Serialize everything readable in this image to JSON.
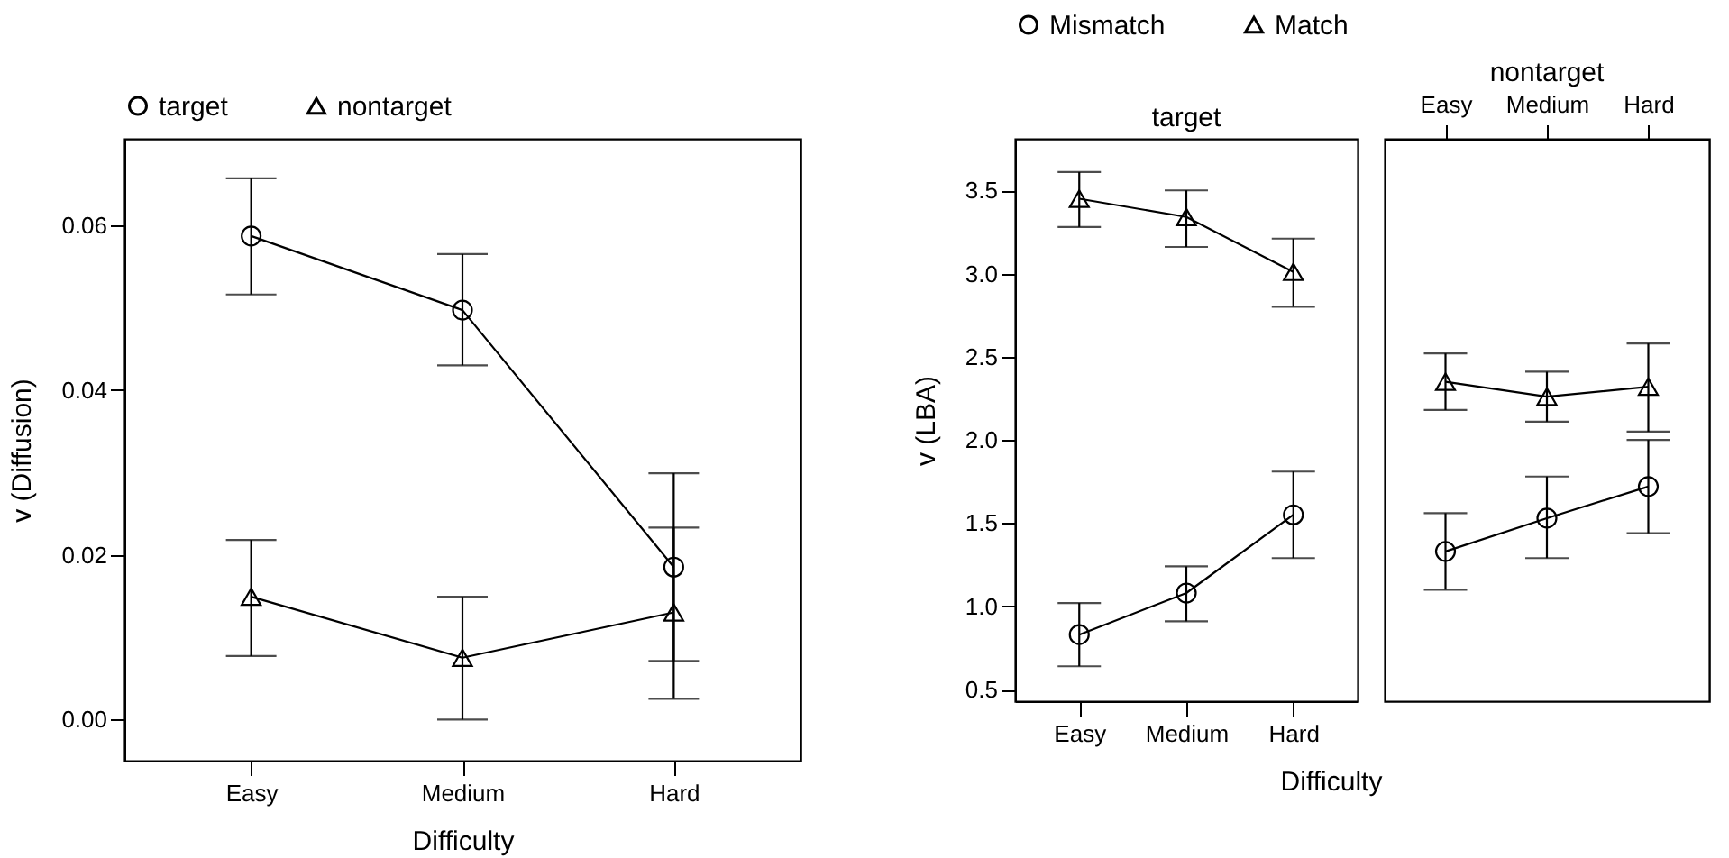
{
  "chart_data": [
    {
      "type": "line",
      "categories": [
        "Easy",
        "Medium",
        "Hard"
      ],
      "xlabel": "Difficulty",
      "ylabel": "v (Diffusion)",
      "ylim": [
        -0.005,
        0.0705
      ],
      "yticks": [
        {
          "value": 0,
          "label": "0.00"
        },
        {
          "value": 0.02,
          "label": "0.02"
        },
        {
          "value": 0.04,
          "label": "0.04"
        },
        {
          "value": 0.06,
          "label": "0.06"
        }
      ],
      "legend": "top",
      "grid": false,
      "series": [
        {
          "name": "target",
          "color": "#000000",
          "marker": "circle",
          "values": [
            0.0587,
            0.0497,
            0.0185
          ],
          "errors": [
            [
              0.0516,
              0.0657
            ],
            [
              0.043,
              0.0565
            ],
            [
              0.0071,
              0.0299
            ]
          ]
        },
        {
          "name": "nontarget",
          "color": "#000000",
          "marker": "triangle",
          "values": [
            0.0149,
            0.0075,
            0.013
          ],
          "errors": [
            [
              0.0077,
              0.0218
            ],
            [
              0.0,
              0.0149
            ],
            [
              0.0025,
              0.0233
            ]
          ]
        }
      ]
    },
    {
      "type": "line",
      "title": "target",
      "categories": [
        "Easy",
        "Medium",
        "Hard"
      ],
      "xlabel": "Difficulty",
      "ylabel": "v (LBA)",
      "ylim": [
        0.43,
        3.81
      ],
      "yticks": [
        0.5,
        {
          "value": 1,
          "label": "1.0"
        },
        1.5,
        {
          "value": 2,
          "label": "2.0"
        },
        2.5,
        {
          "value": 3,
          "label": "3.0"
        },
        3.5
      ],
      "legend": "top",
      "grid": false,
      "series": [
        {
          "name": "Mismatch",
          "color": "#000000",
          "marker": "circle",
          "values": [
            0.83,
            1.08,
            1.55
          ],
          "errors": [
            [
              0.64,
              1.02
            ],
            [
              0.91,
              1.24
            ],
            [
              1.29,
              1.81
            ]
          ]
        },
        {
          "name": "Match",
          "color": "#000000",
          "marker": "triangle",
          "values": [
            3.45,
            3.34,
            3.01
          ],
          "errors": [
            [
              3.28,
              3.61
            ],
            [
              3.16,
              3.5
            ],
            [
              2.8,
              3.21
            ]
          ]
        }
      ]
    },
    {
      "type": "line",
      "title": "nontarget",
      "categories": [
        "Easy",
        "Medium",
        "Hard"
      ],
      "ylim": [
        0.43,
        3.81
      ],
      "tick_labels": "x",
      "legend": "top",
      "grid": false,
      "series": [
        {
          "name": "Mismatch",
          "color": "#000000",
          "marker": "circle",
          "values": [
            1.33,
            1.53,
            1.72
          ],
          "errors": [
            [
              1.1,
              1.56
            ],
            [
              1.29,
              1.78
            ],
            [
              1.44,
              2.0
            ]
          ]
        },
        {
          "name": "Match",
          "color": "#000000",
          "marker": "triangle",
          "values": [
            2.35,
            2.26,
            2.32
          ],
          "errors": [
            [
              2.18,
              2.52
            ],
            [
              2.11,
              2.41
            ],
            [
              2.05,
              2.58
            ]
          ]
        }
      ]
    }
  ]
}
